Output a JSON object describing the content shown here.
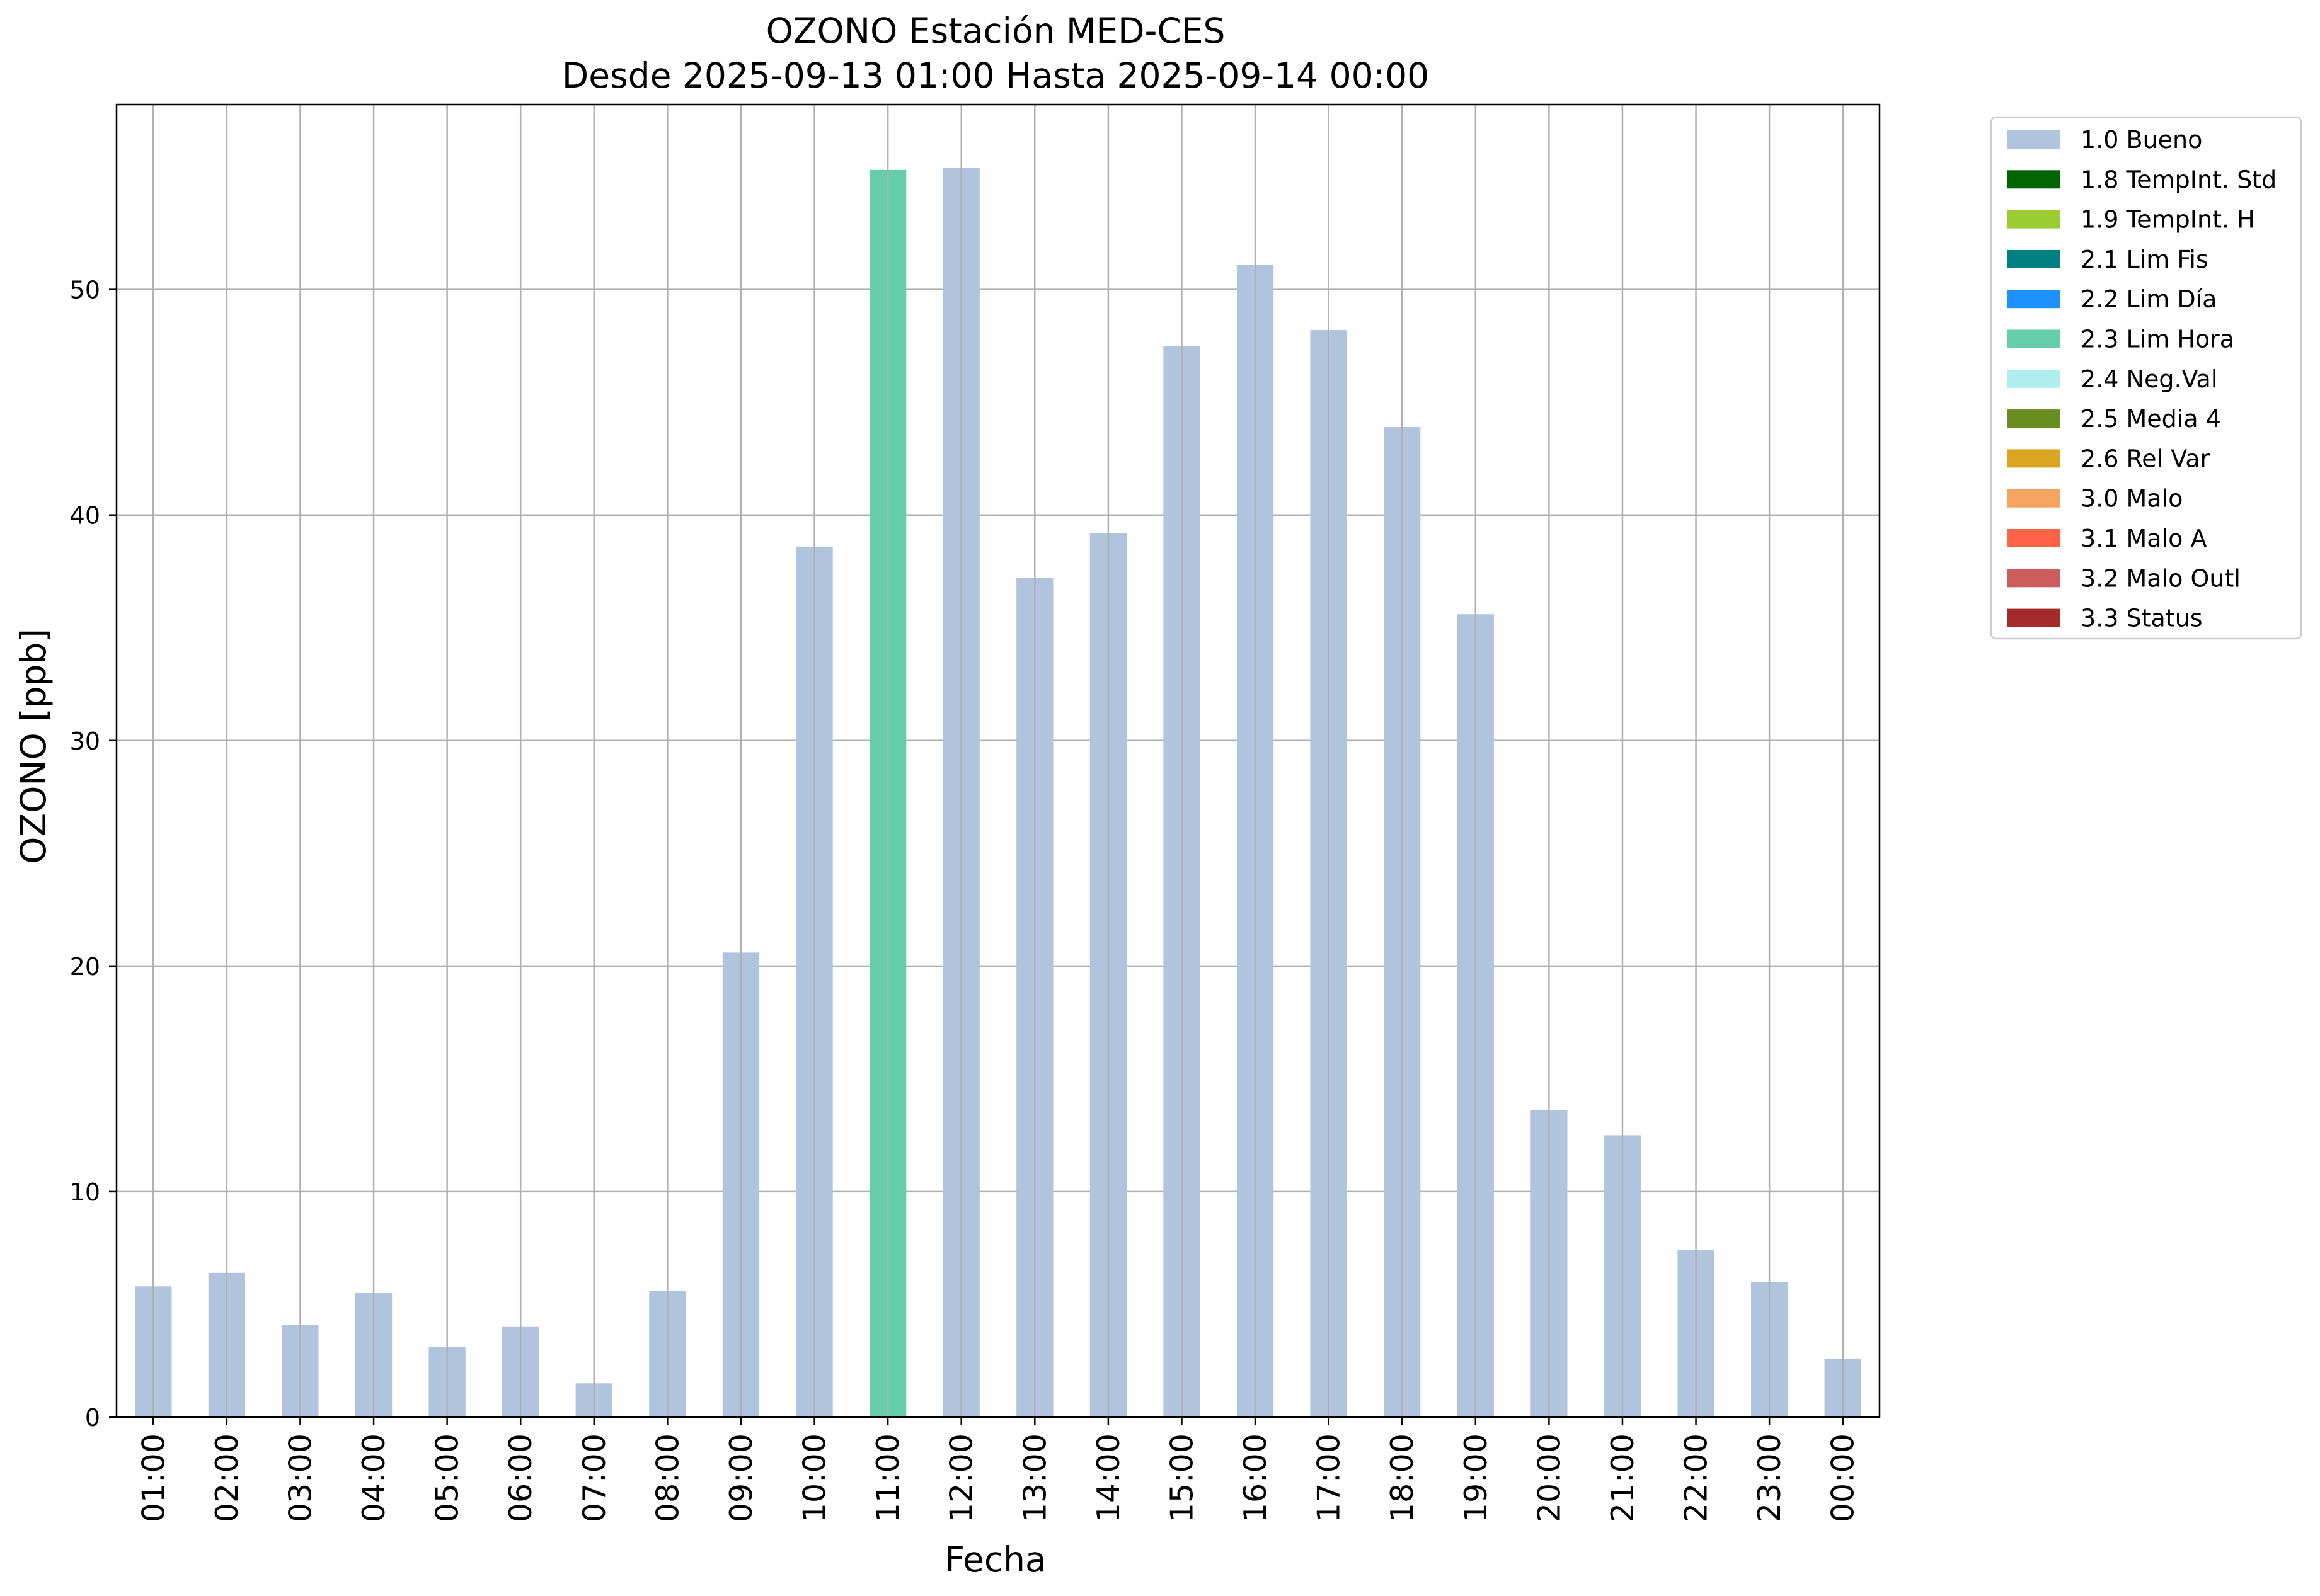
{
  "chart_data": {
    "type": "bar",
    "title": "OZONO Estación MED-CES",
    "subtitle": "Desde 2025-09-13 01:00 Hasta 2025-09-14 00:00",
    "xlabel": "Fecha",
    "ylabel": "OZONO [ppb]",
    "ylim": [
      0,
      58.2
    ],
    "yticks": [
      0,
      10,
      20,
      30,
      40,
      50
    ],
    "grid": true,
    "legend_position": "outside right, top",
    "categories": [
      "01:00",
      "02:00",
      "03:00",
      "04:00",
      "05:00",
      "06:00",
      "07:00",
      "08:00",
      "09:00",
      "10:00",
      "11:00",
      "12:00",
      "13:00",
      "14:00",
      "15:00",
      "16:00",
      "17:00",
      "18:00",
      "19:00",
      "20:00",
      "21:00",
      "22:00",
      "23:00",
      "00:00"
    ],
    "values": [
      5.8,
      6.4,
      4.1,
      5.5,
      3.1,
      4.0,
      1.5,
      5.6,
      20.6,
      38.6,
      55.3,
      55.4,
      37.2,
      39.2,
      47.5,
      51.1,
      48.2,
      43.9,
      35.6,
      13.6,
      12.5,
      7.4,
      6.0,
      2.6
    ],
    "flags": [
      "1.0 Bueno",
      "1.0 Bueno",
      "1.0 Bueno",
      "1.0 Bueno",
      "1.0 Bueno",
      "1.0 Bueno",
      "1.0 Bueno",
      "1.0 Bueno",
      "1.0 Bueno",
      "1.0 Bueno",
      "2.3 Lim Hora",
      "1.0 Bueno",
      "1.0 Bueno",
      "1.0 Bueno",
      "1.0 Bueno",
      "1.0 Bueno",
      "1.0 Bueno",
      "1.0 Bueno",
      "1.0 Bueno",
      "1.0 Bueno",
      "1.0 Bueno",
      "1.0 Bueno",
      "1.0 Bueno",
      "1.0 Bueno"
    ],
    "legend": [
      {
        "label": "1.0 Bueno",
        "color": "#b0c4de"
      },
      {
        "label": "1.8 TempInt. Std",
        "color": "#006400"
      },
      {
        "label": "1.9 TempInt. H",
        "color": "#9acd32"
      },
      {
        "label": "2.1 Lim Fis",
        "color": "#008080"
      },
      {
        "label": "2.2 Lim Día",
        "color": "#1e90ff"
      },
      {
        "label": "2.3 Lim Hora",
        "color": "#66cdaa"
      },
      {
        "label": "2.4 Neg.Val",
        "color": "#afeeee"
      },
      {
        "label": "2.5 Media 4",
        "color": "#6b8e23"
      },
      {
        "label": "2.6 Rel Var",
        "color": "#daa520"
      },
      {
        "label": "3.0 Malo",
        "color": "#f4a460"
      },
      {
        "label": "3.1 Malo A",
        "color": "#ff6347"
      },
      {
        "label": "3.2 Malo Outl",
        "color": "#cd5c5c"
      },
      {
        "label": "3.3 Status",
        "color": "#a52a2a"
      }
    ]
  }
}
